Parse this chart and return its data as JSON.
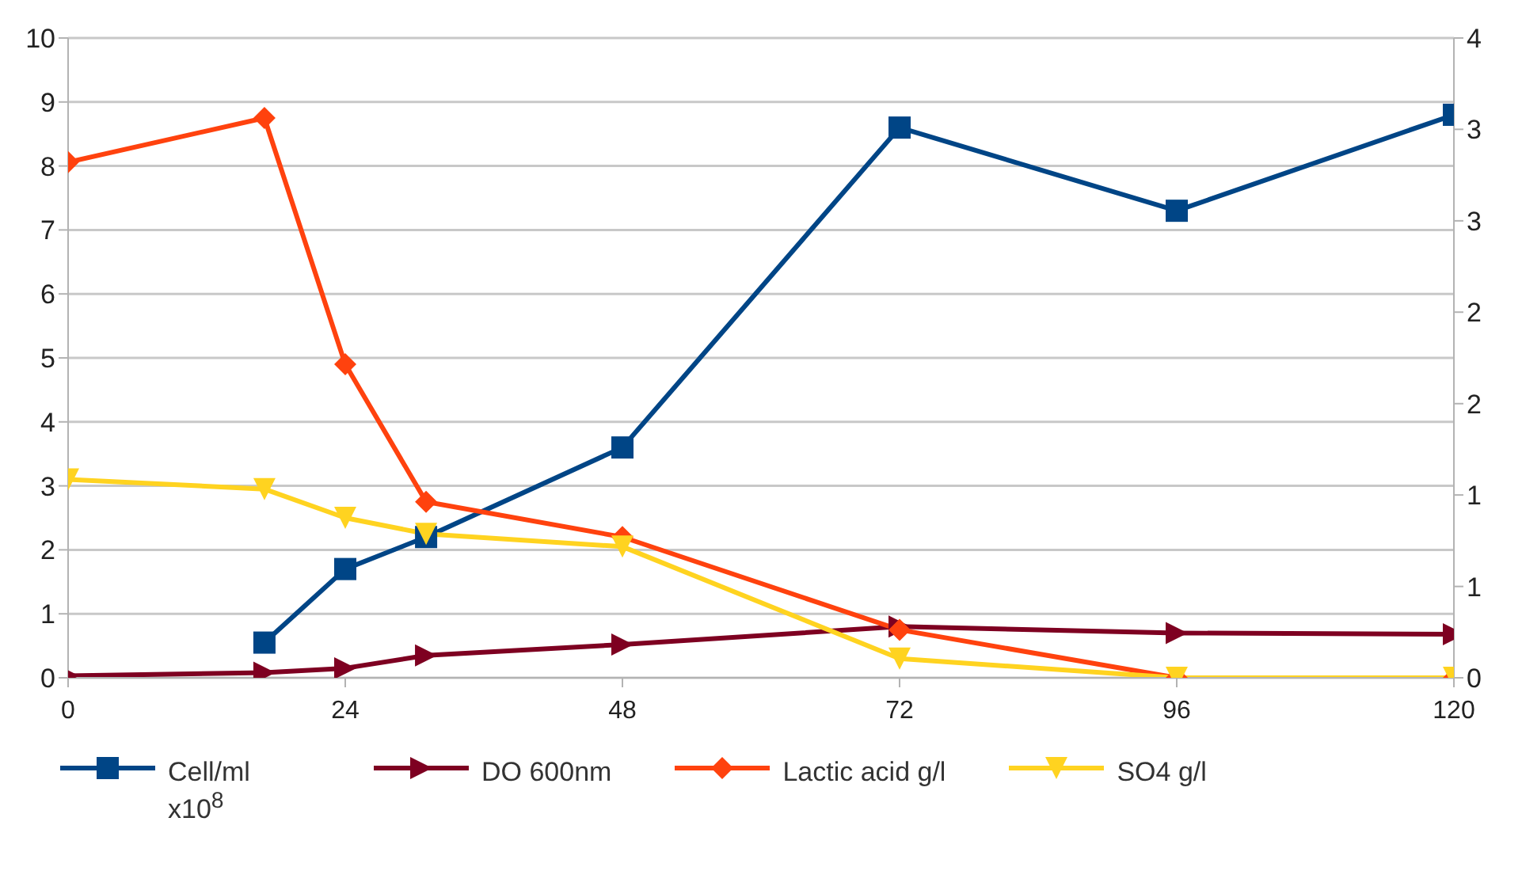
{
  "chart_data": {
    "type": "line",
    "x": [
      0,
      17,
      24,
      31,
      48,
      72,
      96,
      120
    ],
    "series": [
      {
        "name": "Cell/ml x10$^{8}$",
        "color": "#004586",
        "marker": "square",
        "values": [
          null,
          0.55,
          1.7,
          2.2,
          3.6,
          8.6,
          7.3,
          8.8
        ]
      },
      {
        "name": "DO 600nm",
        "color": "#7e0021",
        "marker": "triangle-right",
        "values": [
          0.03,
          0.08,
          0.15,
          0.35,
          0.52,
          0.8,
          0.7,
          0.68
        ]
      },
      {
        "name": "Lactic acid g/l",
        "color": "#ff420e",
        "marker": "diamond",
        "values": [
          8.06,
          8.75,
          4.9,
          2.75,
          2.2,
          0.75,
          0,
          0
        ]
      },
      {
        "name": "SO4 g/l",
        "color": "#ffd320",
        "marker": "triangle-down",
        "values": [
          3.1,
          2.95,
          2.5,
          2.25,
          2.05,
          0.3,
          0,
          0
        ]
      }
    ],
    "xlim": [
      0,
      120
    ],
    "xticks": [
      0,
      24,
      48,
      72,
      96,
      120
    ],
    "ylim": [
      0,
      10
    ],
    "yticks": [
      0,
      1,
      2,
      3,
      4,
      5,
      6,
      7,
      8,
      9,
      10
    ],
    "y2lim": [
      0,
      4
    ],
    "y2ticks": [
      0,
      {
        "value": 0.571,
        "label": "1"
      },
      {
        "value": 1.143,
        "label": "1"
      },
      {
        "value": 1.714,
        "label": "2"
      },
      {
        "value": 2.286,
        "label": "2"
      },
      {
        "value": 2.857,
        "label": "3"
      },
      {
        "value": 3.429,
        "label": "3"
      },
      4
    ],
    "grid": "y",
    "legend": "bottom",
    "line_style": "solid"
  }
}
